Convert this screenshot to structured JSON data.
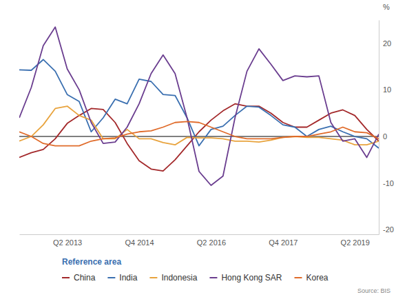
{
  "chart_data": {
    "type": "line",
    "y_label": "%",
    "legend_title": "Reference area",
    "source": "Source: BIS",
    "categories": [
      null,
      null,
      null,
      null,
      "Q2 2013",
      null,
      null,
      null,
      null,
      null,
      "Q4 2014",
      null,
      null,
      null,
      null,
      null,
      "Q2 2016",
      null,
      null,
      null,
      null,
      null,
      "Q4 2017",
      null,
      null,
      null,
      null,
      null,
      "Q2 2019",
      null,
      null
    ],
    "ylim": [
      -21,
      25
    ],
    "yticks": [
      -20,
      -10,
      0,
      10,
      20
    ],
    "grid": false,
    "legend": "bottom",
    "series": [
      {
        "name": "China",
        "color": "#a3282a",
        "values": [
          -4.5,
          -3.5,
          -2.8,
          -0.5,
          2.8,
          4.5,
          6,
          5.8,
          3,
          -1.5,
          -5.2,
          -7,
          -7.4,
          -5,
          -2,
          1,
          3.5,
          5.5,
          7,
          6.5,
          6.5,
          5,
          3,
          2,
          2,
          3.5,
          5,
          5.7,
          4.5,
          1.5,
          -1
        ]
      },
      {
        "name": "India",
        "color": "#3a6fb0",
        "values": [
          14.3,
          14.2,
          16.5,
          14,
          9,
          7.5,
          1,
          4,
          8,
          7,
          12.3,
          11.8,
          9,
          8.8,
          4,
          -2,
          1.5,
          2.2,
          4.5,
          6.5,
          6.3,
          4.5,
          2.5,
          2,
          0,
          1.5,
          2.2,
          1,
          0,
          -0.5,
          -2.5
        ]
      },
      {
        "name": "Indonesia",
        "color": "#e8a33d",
        "values": [
          -1,
          0,
          2.5,
          6,
          6.5,
          4.5,
          3.5,
          -0.5,
          -0.5,
          1.5,
          -0.5,
          -0.5,
          -1.3,
          -1.8,
          -0.2,
          -0.3,
          -0.3,
          -0.5,
          -1,
          -1,
          -1.2,
          -0.8,
          -0.2,
          0,
          -0.2,
          -0.2,
          -0.5,
          -0.8,
          -1.8,
          -1.8,
          -1
        ]
      },
      {
        "name": "Hong Kong SAR",
        "color": "#6a3d8f",
        "values": [
          4,
          10.5,
          19.5,
          23.5,
          14.5,
          10,
          3,
          -1.5,
          -1.2,
          2,
          7,
          13.5,
          17.5,
          13.5,
          4,
          -7.5,
          -10.5,
          -8.5,
          4,
          14,
          18.8,
          15.5,
          12,
          13,
          12.8,
          13,
          3,
          -1,
          -0.5,
          -4.5,
          0.5
        ]
      },
      {
        "name": "Korea",
        "color": "#e06b2a",
        "values": [
          1,
          0,
          -1.5,
          -2,
          -2,
          -2,
          -1,
          -0.5,
          -0.3,
          0.5,
          1,
          1.2,
          2,
          3,
          3.2,
          3,
          2,
          1,
          0,
          -0.5,
          -0.5,
          -0.5,
          -0.2,
          0,
          0,
          0.5,
          1,
          2,
          1,
          0.8,
          -0.5
        ]
      }
    ]
  }
}
